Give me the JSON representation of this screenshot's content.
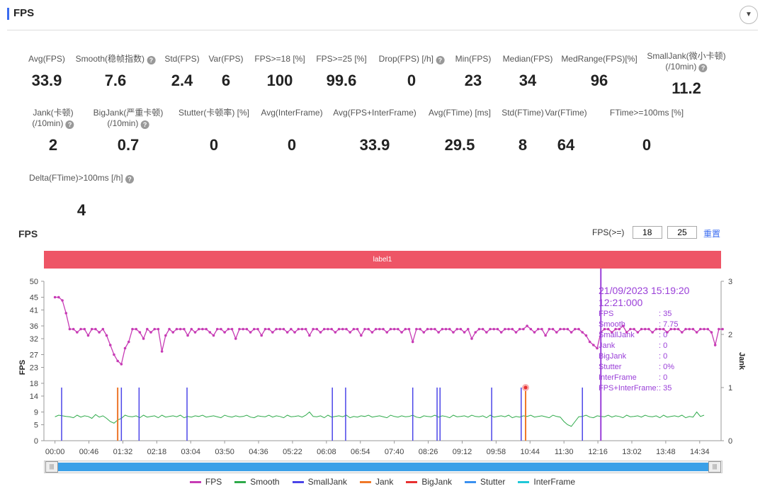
{
  "header": {
    "title": "FPS"
  },
  "metrics_row1": [
    {
      "label": "Avg(FPS)",
      "value": "33.9"
    },
    {
      "label": "Smooth(稳帧指数)",
      "value": "7.6",
      "help": true
    },
    {
      "label": "Std(FPS)",
      "value": "2.4"
    },
    {
      "label": "Var(FPS)",
      "value": "6"
    },
    {
      "label": "FPS>=18 [%]",
      "value": "100"
    },
    {
      "label": "FPS>=25 [%]",
      "value": "99.6"
    },
    {
      "label": "Drop(FPS) [/h]",
      "value": "0",
      "help": true
    },
    {
      "label": "Min(FPS)",
      "value": "23"
    },
    {
      "label": "Median(FPS)",
      "value": "34"
    },
    {
      "label": "MedRange(FPS)[%]",
      "value": "96"
    },
    {
      "label": "SmallJank(微小卡顿)",
      "label2": "(/10min)",
      "value": "11.2",
      "help": true
    }
  ],
  "metrics_row2": [
    {
      "label": "Jank(卡顿)",
      "label2": "(/10min)",
      "value": "2",
      "help": true
    },
    {
      "label": "BigJank(严重卡顿)",
      "label2": "(/10min)",
      "value": "0.7",
      "help": true
    },
    {
      "label": "Stutter(卡顿率) [%]",
      "value": "0"
    },
    {
      "label": "Avg(InterFrame)",
      "value": "0"
    },
    {
      "label": "Avg(FPS+InterFrame)",
      "value": "33.9"
    },
    {
      "label": "Avg(FTime) [ms]",
      "value": "29.5"
    },
    {
      "label": "Std(FTime)",
      "value": "8"
    },
    {
      "label": "Var(FTime)",
      "value": "64"
    },
    {
      "label": "FTime>=100ms [%]",
      "value": "0"
    }
  ],
  "metrics_row3": [
    {
      "label": "Delta(FTime)>100ms [/h]",
      "value": "4",
      "help": true
    }
  ],
  "chart_controls": {
    "title": "FPS",
    "fps_label": "FPS(>=)",
    "threshold1": "18",
    "threshold2": "25",
    "reset": "重置",
    "label_bar": "label1"
  },
  "tooltip": {
    "datetime": "21/09/2023 15:19:20",
    "time": "12:21:000",
    "rows": [
      [
        "FPS",
        ": 35"
      ],
      [
        "Smooth",
        ": 7.75"
      ],
      [
        "SmallJank",
        ": 0"
      ],
      [
        "Jank",
        ": 0"
      ],
      [
        "BigJank",
        ": 0"
      ],
      [
        "Stutter",
        ": 0%"
      ],
      [
        "InterFrame",
        ": 0"
      ],
      [
        "FPS+InterFrame:",
        ": 35"
      ]
    ]
  },
  "chart_data": {
    "type": "line",
    "title": "FPS",
    "ylabel": "FPS",
    "y2label": "Jank",
    "ylim": [
      0,
      50
    ],
    "y2lim": [
      0,
      3
    ],
    "yticks": [
      0,
      5,
      9,
      14,
      18,
      23,
      27,
      32,
      36,
      41,
      45,
      50
    ],
    "y2ticks": [
      0,
      1,
      2,
      3
    ],
    "xlim_s": [
      -15,
      903
    ],
    "xticks": [
      "00:00",
      "00:46",
      "01:32",
      "02:18",
      "03:04",
      "03:50",
      "04:36",
      "05:22",
      "06:08",
      "06:54",
      "07:40",
      "08:26",
      "09:12",
      "09:58",
      "10:44",
      "11:30",
      "12:16",
      "13:02",
      "13:48",
      "14:34"
    ],
    "sample_interval_s": 5,
    "fps": [
      45,
      45,
      44,
      40,
      35,
      35,
      34,
      35,
      35,
      33,
      35,
      35,
      34,
      35,
      33,
      30,
      27,
      25,
      24,
      29,
      31,
      35,
      35,
      34,
      32,
      35,
      34,
      35,
      35,
      28,
      33,
      35,
      34,
      35,
      35,
      35,
      33,
      35,
      34,
      35,
      35,
      35,
      34,
      33,
      35,
      35,
      34,
      35,
      35,
      32,
      35,
      35,
      35,
      34,
      35,
      35,
      33,
      35,
      35,
      34,
      35,
      35,
      35,
      34,
      35,
      34,
      35,
      35,
      35,
      33,
      35,
      35,
      34,
      35,
      35,
      35,
      34,
      35,
      35,
      35,
      34,
      35,
      35,
      33,
      35,
      35,
      34,
      35,
      35,
      35,
      34,
      35,
      35,
      35,
      34,
      35,
      35,
      31,
      35,
      35,
      34,
      35,
      35,
      35,
      34,
      35,
      35,
      35,
      34,
      35,
      35,
      34,
      35,
      32,
      34,
      35,
      35,
      34,
      35,
      35,
      35,
      34,
      35,
      35,
      35,
      34,
      35,
      35,
      36,
      35,
      34,
      35,
      35,
      33,
      35,
      35,
      34,
      35,
      35,
      35,
      34,
      35,
      35,
      34,
      33,
      31,
      30,
      29,
      34,
      35,
      35,
      34,
      35,
      35,
      36,
      34,
      35,
      35,
      34,
      35,
      35,
      35,
      34,
      35,
      35,
      35,
      34,
      35,
      35,
      35,
      34,
      35,
      35,
      35,
      34,
      35,
      35,
      35,
      34,
      30,
      35,
      35
    ],
    "smooth": [
      7.5,
      8,
      7.8,
      7.6,
      7.5,
      7.2,
      8,
      7.4,
      7.8,
      7.6,
      7,
      8.2,
      7.4,
      7.8,
      7,
      6,
      5.5,
      6.5,
      7,
      8,
      7.6,
      7.5,
      7.8,
      7.2,
      8,
      7.4,
      7.6,
      7.8,
      7.2,
      8,
      7.4,
      7.6,
      7.8,
      7.5,
      8,
      7.2,
      7.6,
      7.4,
      7.8,
      7.6,
      8,
      7.4,
      7.6,
      7.8,
      7.5,
      7.2,
      8,
      7.6,
      7.4,
      7.8,
      7.5,
      7.6,
      8,
      7.4,
      7.2,
      7.8,
      7.6,
      7.5,
      8,
      7.4,
      7.8,
      7.6,
      7.2,
      8,
      7.5,
      7.6,
      7.8,
      7.4,
      8,
      9,
      7.6,
      7.5,
      7.8,
      7.2,
      8,
      7.4,
      7.6,
      7.8,
      7.5,
      8,
      7.2,
      7.6,
      7.4,
      7.8,
      7.6,
      8,
      7.4,
      7.6,
      7.8,
      7.5,
      7.2,
      8,
      7.6,
      7.4,
      7.8,
      7.5,
      7.6,
      8,
      7.4,
      7.2,
      7.8,
      7.6,
      7.5,
      8,
      7.4,
      7.8,
      7.6,
      7.2,
      8,
      7.5,
      7.6,
      7.8,
      7.4,
      8,
      7.6,
      7.5,
      7.8,
      7.2,
      8,
      7.4,
      7.6,
      7.8,
      7.5,
      8,
      7.2,
      7.6,
      7.4,
      7.8,
      7.6,
      8,
      7.4,
      7.6,
      7.8,
      7.5,
      7.2,
      8,
      7.6,
      7.4,
      6,
      5,
      4.5,
      6,
      7.5,
      7.6,
      8,
      7.4,
      7.2,
      7.8,
      7.6,
      7.5,
      8,
      7.4,
      7.8,
      7.6,
      7.2,
      8,
      7.5,
      7.6,
      7.8,
      7.4,
      8,
      7.6,
      7.5,
      7.8,
      7.2,
      8,
      7.4,
      7.6,
      7.8,
      7.5,
      8,
      7.2,
      7.6,
      7.4,
      9,
      7.6,
      8
    ],
    "smalljank_times_s": [
      9,
      85,
      90,
      114,
      179,
      376,
      394,
      485,
      518,
      522,
      592,
      632,
      715
    ],
    "jank_times_s": [
      85,
      638
    ],
    "bigjank_times_s": [
      638
    ],
    "stutter": 0,
    "interframe": 0,
    "cursor_time_s": 740,
    "legend": [
      "FPS",
      "Smooth",
      "SmallJank",
      "Jank",
      "BigJank",
      "Stutter",
      "InterFrame"
    ],
    "colors": {
      "FPS": "#c73bb5",
      "Smooth": "#2eaa4a",
      "SmallJank": "#4b45e8",
      "Jank": "#f07828",
      "BigJank": "#e83030",
      "Stutter": "#3a90f0",
      "InterFrame": "#20c8d8"
    },
    "legend_position": "bottom"
  }
}
